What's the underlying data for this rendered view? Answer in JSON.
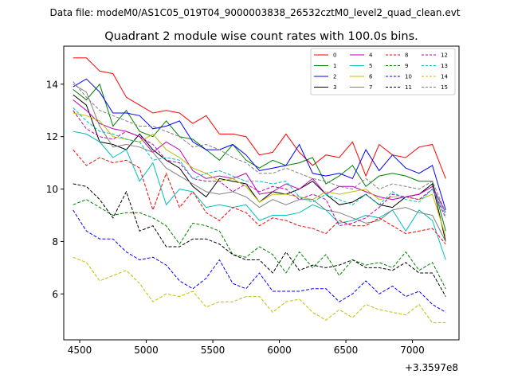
{
  "chart_data": {
    "type": "line",
    "suptitle": "Data file: modeM0/AS1C05_019T04_9000003838_26532cztM0_level2_quad_clean.evt",
    "title": "Quadrant 2 module wise count rates with 100.0s bins.",
    "xlabel": "",
    "ylabel": "",
    "offset_label": "+3.3597e8",
    "xlim": [
      4380,
      7350
    ],
    "ylim": [
      4.25,
      15.45
    ],
    "xticks": [
      4500,
      5000,
      5500,
      6000,
      6500,
      7000
    ],
    "yticks": [
      6,
      8,
      10,
      12,
      14
    ],
    "grid": false,
    "legend_position": "top-right",
    "x": [
      4450,
      4550,
      4650,
      4750,
      4850,
      4950,
      5050,
      5150,
      5250,
      5350,
      5450,
      5550,
      5650,
      5750,
      5850,
      5950,
      6050,
      6150,
      6250,
      6350,
      6450,
      6550,
      6650,
      6750,
      6850,
      6950,
      7050,
      7150,
      7250
    ],
    "series": [
      {
        "name": "0",
        "color": "#ff0000",
        "style": "solid",
        "values": [
          15.0,
          15.0,
          14.5,
          14.4,
          13.5,
          13.2,
          12.9,
          13.0,
          12.9,
          12.5,
          12.8,
          12.1,
          12.1,
          12.0,
          11.3,
          11.4,
          12.1,
          11.4,
          10.9,
          11.3,
          11.2,
          11.8,
          10.5,
          11.7,
          11.3,
          11.2,
          11.6,
          11.7,
          10.4
        ]
      },
      {
        "name": "1",
        "color": "#008000",
        "style": "solid",
        "values": [
          13.8,
          13.4,
          14.0,
          12.4,
          13.0,
          12.2,
          12.0,
          12.6,
          12.0,
          11.9,
          11.5,
          11.1,
          11.7,
          11.1,
          10.8,
          11.1,
          10.9,
          11.0,
          11.2,
          10.2,
          10.5,
          10.9,
          10.1,
          10.5,
          10.6,
          10.5,
          10.3,
          10.3,
          8.4
        ]
      },
      {
        "name": "2",
        "color": "#0000ff",
        "style": "solid",
        "values": [
          13.9,
          14.2,
          13.7,
          12.9,
          12.9,
          12.8,
          12.3,
          12.4,
          12.6,
          11.8,
          11.5,
          11.5,
          11.7,
          11.3,
          10.7,
          10.8,
          10.9,
          11.7,
          10.6,
          10.5,
          10.6,
          10.4,
          11.5,
          10.7,
          11.3,
          10.8,
          10.6,
          10.9,
          9.2
        ]
      },
      {
        "name": "3",
        "color": "#000000",
        "style": "solid",
        "values": [
          13.6,
          13.2,
          11.8,
          11.7,
          11.5,
          12.1,
          11.5,
          11.1,
          10.8,
          10.1,
          9.7,
          10.4,
          10.3,
          10.2,
          9.5,
          9.9,
          9.8,
          10.0,
          10.3,
          9.8,
          9.4,
          9.5,
          9.8,
          9.4,
          9.3,
          9.7,
          9.8,
          10.2,
          8.0
        ]
      },
      {
        "name": "4",
        "color": "#bf00bf",
        "style": "solid",
        "values": [
          13.4,
          13.0,
          12.5,
          12.3,
          12.2,
          12.0,
          11.4,
          11.8,
          11.5,
          10.7,
          10.4,
          10.5,
          10.4,
          10.6,
          9.8,
          9.9,
          10.2,
          10.0,
          10.4,
          9.8,
          10.1,
          10.1,
          9.9,
          9.7,
          9.6,
          9.7,
          9.8,
          10.1,
          9.1
        ]
      },
      {
        "name": "5",
        "color": "#00bfbf",
        "style": "solid",
        "values": [
          12.2,
          12.1,
          11.8,
          11.2,
          11.5,
          10.3,
          11.0,
          9.4,
          10.0,
          9.9,
          9.3,
          9.4,
          9.3,
          9.4,
          8.8,
          9.0,
          9.0,
          9.1,
          9.4,
          9.2,
          8.7,
          8.8,
          9.0,
          8.9,
          9.2,
          8.4,
          9.2,
          8.8,
          7.3
        ]
      },
      {
        "name": "6",
        "color": "#bfbf00",
        "style": "solid",
        "values": [
          12.9,
          12.8,
          12.6,
          12.0,
          11.9,
          11.8,
          12.1,
          11.5,
          11.2,
          10.8,
          10.6,
          10.3,
          10.4,
          10.1,
          9.5,
          9.8,
          9.8,
          9.7,
          9.6,
          9.9,
          9.8,
          9.9,
          10.0,
          9.6,
          9.7,
          9.7,
          9.6,
          9.8,
          8.2
        ]
      },
      {
        "name": "7",
        "color": "#808080",
        "style": "solid",
        "values": [
          14.0,
          13.7,
          12.4,
          11.6,
          11.7,
          11.6,
          11.4,
          10.8,
          10.5,
          10.2,
          9.9,
          9.8,
          9.9,
          9.7,
          9.3,
          9.6,
          9.4,
          9.6,
          9.6,
          9.2,
          9.1,
          8.9,
          8.7,
          8.8,
          9.2,
          9.3,
          9.1,
          9.0,
          8.0
        ]
      },
      {
        "name": "8",
        "color": "#ff0000",
        "style": "dashed",
        "values": [
          11.5,
          10.9,
          11.2,
          11.0,
          11.1,
          10.8,
          9.2,
          10.6,
          9.3,
          9.9,
          9.1,
          8.8,
          9.3,
          9.1,
          8.6,
          8.9,
          8.8,
          8.6,
          8.5,
          8.3,
          8.8,
          8.6,
          8.6,
          8.9,
          8.6,
          8.3,
          8.4,
          8.5,
          7.9
        ]
      },
      {
        "name": "9",
        "color": "#008000",
        "style": "dashed",
        "values": [
          9.4,
          9.6,
          9.3,
          9.0,
          9.1,
          9.1,
          8.9,
          8.6,
          7.9,
          8.7,
          8.6,
          8.4,
          7.5,
          7.4,
          7.8,
          7.5,
          6.8,
          7.6,
          7.0,
          7.5,
          6.7,
          7.3,
          7.1,
          7.2,
          7.0,
          7.6,
          6.9,
          7.2,
          6.2
        ]
      },
      {
        "name": "10",
        "color": "#0000ff",
        "style": "dashed",
        "values": [
          9.2,
          8.4,
          8.1,
          8.1,
          7.6,
          7.3,
          7.4,
          7.1,
          6.5,
          6.2,
          6.6,
          7.3,
          6.4,
          6.2,
          6.8,
          6.1,
          6.1,
          6.1,
          6.2,
          6.2,
          5.7,
          6.0,
          6.5,
          6.0,
          6.3,
          5.9,
          6.1,
          5.6,
          5.3
        ]
      },
      {
        "name": "11",
        "color": "#000000",
        "style": "dashed",
        "values": [
          10.2,
          10.1,
          9.6,
          8.9,
          9.9,
          8.4,
          8.6,
          7.8,
          7.8,
          8.1,
          8.1,
          7.9,
          7.5,
          7.3,
          7.3,
          6.8,
          7.6,
          6.9,
          7.1,
          7.0,
          7.1,
          7.3,
          7.0,
          7.0,
          6.9,
          7.2,
          6.8,
          6.8,
          5.9
        ]
      },
      {
        "name": "12",
        "color": "#bf00bf",
        "style": "dashed",
        "values": [
          13.0,
          12.3,
          12.0,
          11.9,
          12.2,
          12.0,
          11.7,
          11.1,
          11.0,
          10.4,
          10.3,
          10.3,
          9.9,
          10.2,
          9.9,
          10.1,
          10.0,
          9.6,
          9.8,
          9.6,
          8.6,
          8.7,
          8.9,
          9.3,
          9.8,
          9.7,
          9.6,
          10.0,
          8.9
        ]
      },
      {
        "name": "13",
        "color": "#00bfbf",
        "style": "dashed",
        "values": [
          13.1,
          12.6,
          12.2,
          12.1,
          11.9,
          11.8,
          11.1,
          11.2,
          11.1,
          10.4,
          10.6,
          10.7,
          10.5,
          10.3,
          10.3,
          10.2,
          10.3,
          9.7,
          9.5,
          9.8,
          9.6,
          9.4,
          9.8,
          9.4,
          9.9,
          9.6,
          9.5,
          10.0,
          9.0
        ]
      },
      {
        "name": "14",
        "color": "#bfbf00",
        "style": "dashed",
        "values": [
          7.4,
          7.2,
          6.5,
          6.7,
          6.9,
          6.4,
          5.7,
          6.0,
          5.9,
          6.1,
          5.5,
          5.7,
          5.7,
          5.9,
          5.9,
          5.3,
          5.7,
          5.8,
          5.3,
          5.0,
          5.4,
          5.1,
          5.6,
          5.4,
          5.3,
          5.2,
          5.6,
          4.9,
          4.9
        ]
      },
      {
        "name": "15",
        "color": "#808080",
        "style": "dashed",
        "values": [
          14.1,
          13.5,
          13.0,
          12.8,
          12.6,
          12.4,
          12.4,
          12.2,
          12.0,
          11.6,
          11.7,
          11.5,
          11.2,
          11.0,
          10.6,
          10.6,
          10.8,
          10.6,
          10.4,
          10.3,
          10.1,
          10.0,
          10.4,
          10.0,
          10.2,
          10.1,
          10.0,
          10.3,
          9.1
        ]
      }
    ]
  }
}
